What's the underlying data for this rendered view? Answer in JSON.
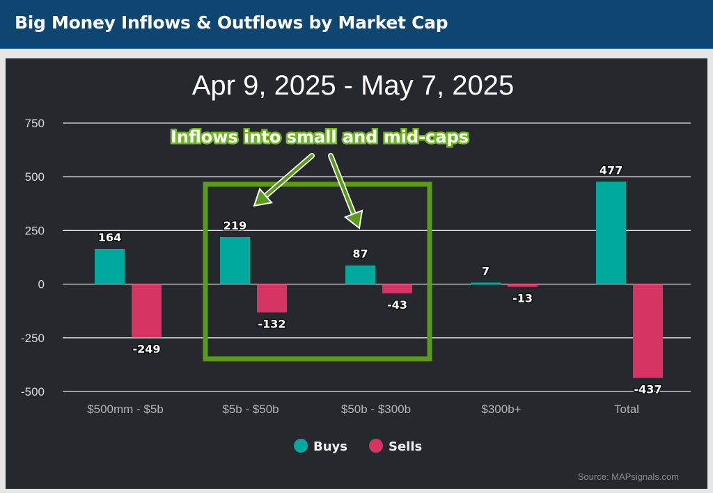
{
  "header": {
    "title": "Big Money Inflows & Outflows by Market Cap"
  },
  "chart_data": {
    "type": "bar",
    "title": "Apr 9, 2025 - May 7, 2025",
    "categories": [
      "$500mm - $5b",
      "$5b - $50b",
      "$50b - $300b",
      "$300b+",
      "Total"
    ],
    "series": [
      {
        "name": "Buys",
        "values": [
          164,
          219,
          87,
          7,
          477
        ],
        "color": "#00a99d"
      },
      {
        "name": "Sells",
        "values": [
          -249,
          -132,
          -43,
          -13,
          -437
        ],
        "color": "#d63462"
      }
    ],
    "ylim": [
      -500,
      750
    ],
    "yticks": [
      750,
      500,
      250,
      0,
      -250,
      -500
    ],
    "grid": true,
    "legend_position": "bottom",
    "annotation": {
      "text": "Inflows into small and mid-caps",
      "color": "#5b9a1a",
      "highlighted_categories": [
        "$5b - $50b",
        "$50b - $300b"
      ]
    },
    "source": "Source: MAPsignals.com"
  }
}
